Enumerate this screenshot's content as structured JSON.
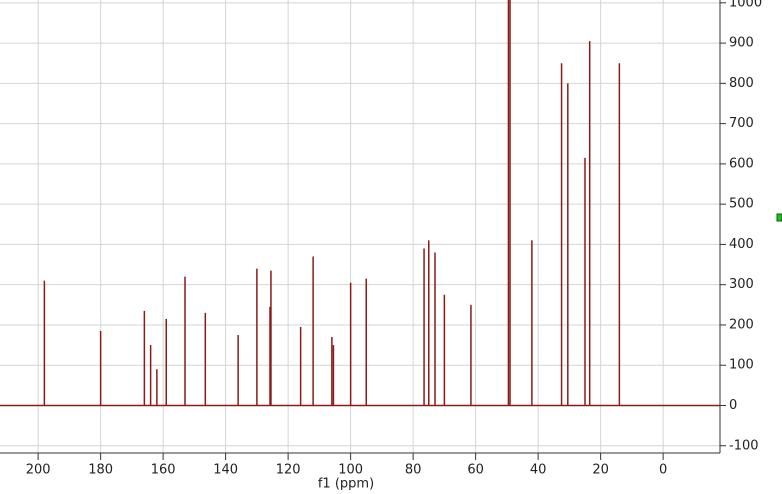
{
  "chart_data": {
    "type": "spectrum",
    "x_label": "f1 (ppm)",
    "x": [
      198,
      180,
      166,
      164,
      162,
      159,
      153,
      146.5,
      136,
      130,
      125.8,
      125.5,
      116,
      112,
      106,
      105.5,
      100,
      95,
      76.5,
      75,
      73,
      70,
      61.5,
      49.5,
      49,
      42,
      32.5,
      30.5,
      25,
      23.5,
      14
    ],
    "values": [
      310,
      185,
      235,
      150,
      90,
      215,
      320,
      230,
      175,
      340,
      245,
      335,
      195,
      370,
      170,
      150,
      305,
      315,
      390,
      410,
      380,
      275,
      250,
      1007,
      1007,
      410,
      850,
      800,
      615,
      905,
      850
    ],
    "color": "#8b1a1a",
    "xlim": [
      212.2,
      -18.2
    ],
    "xticks": [
      200,
      180,
      160,
      140,
      120,
      100,
      80,
      60,
      40,
      20,
      0
    ],
    "ylim": [
      -118,
      1007
    ],
    "yticks": [
      -100,
      0,
      100,
      200,
      300,
      400,
      500,
      600,
      700,
      800,
      900,
      1000
    ],
    "grid": true
  }
}
